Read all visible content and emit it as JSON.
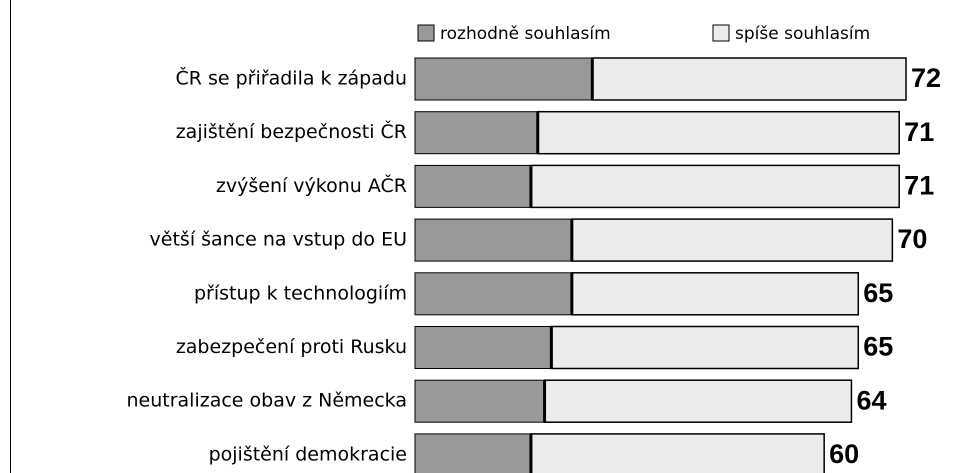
{
  "chart_data": {
    "type": "stacked-barh",
    "categories": [
      "ČR se přiřadila k západu",
      "zajištění bezpečnosti ČR",
      "zvýšení výkonu AČR",
      "větší šance na vstup do EU",
      "přístup k technologiím",
      "zabezpečení proti Rusku",
      "neutralizace obav z Německa",
      "pojištění demokracie"
    ],
    "series": [
      {
        "name": "rozhodně souhlasím",
        "color": "#999999",
        "values": [
          26,
          18,
          17,
          23,
          23,
          20,
          19,
          17
        ]
      },
      {
        "name": "spíše souhlasím",
        "color": "#ececec",
        "values": [
          46,
          53,
          54,
          47,
          42,
          45,
          45,
          43
        ]
      }
    ],
    "totals": [
      72,
      71,
      71,
      70,
      65,
      65,
      64,
      60
    ]
  }
}
